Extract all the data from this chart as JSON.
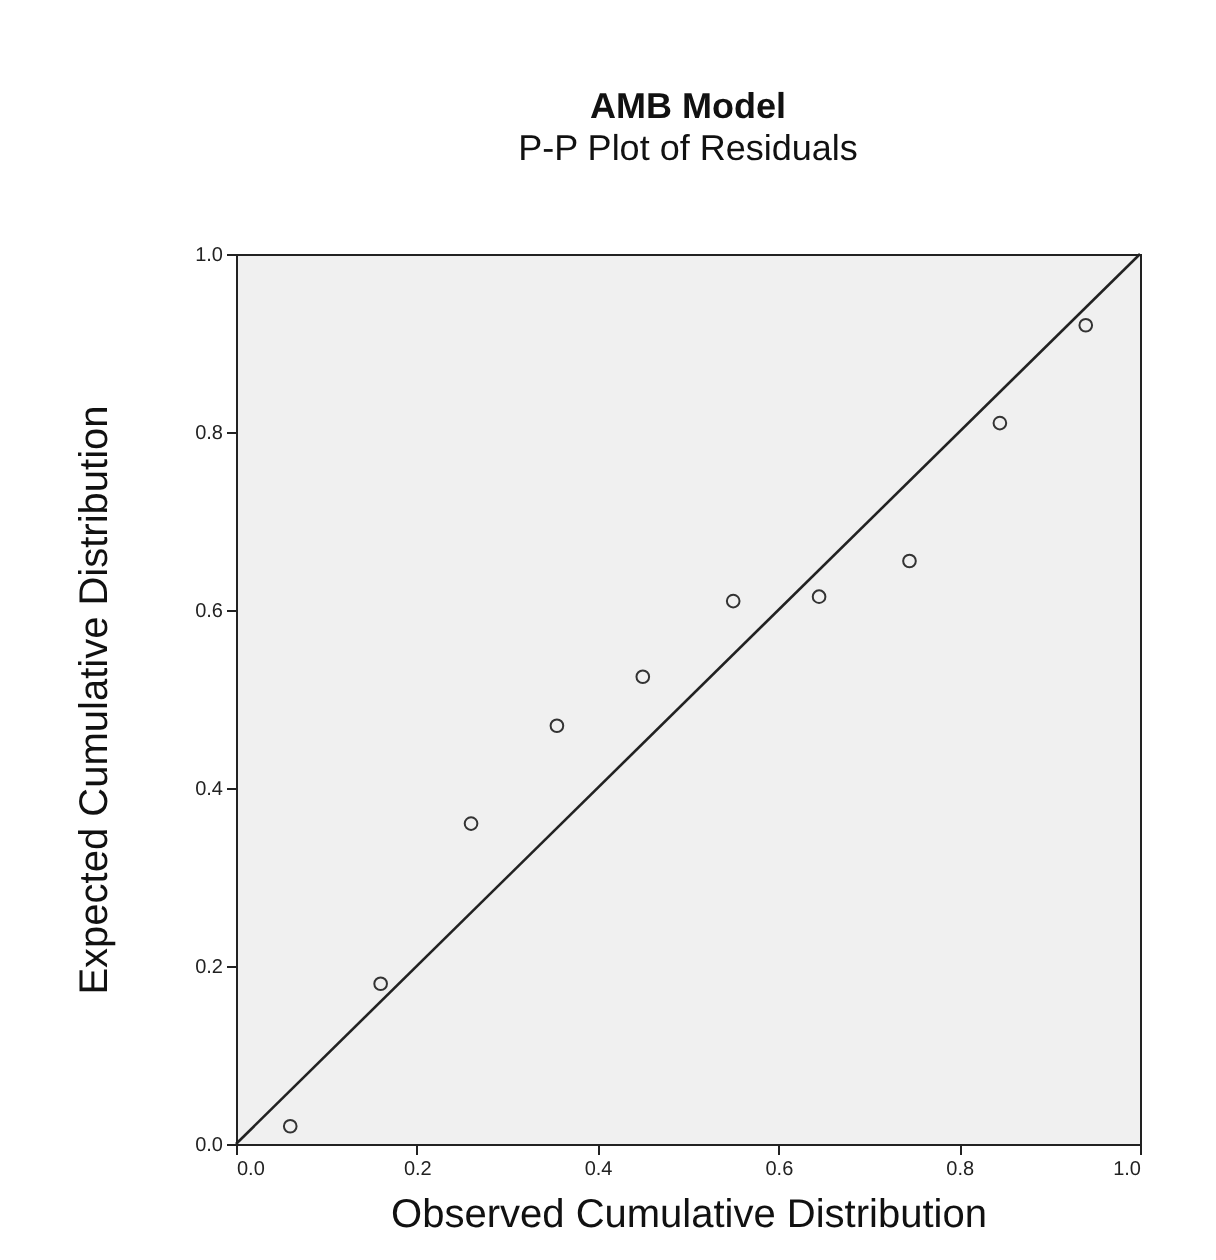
{
  "chart_data": {
    "type": "scatter",
    "title": "AMB Model",
    "subtitle": "P-P Plot of Residuals",
    "xlabel": "Observed Cumulative Distribution",
    "ylabel": "Expected Cumulative Distribution",
    "xlim": [
      0,
      1
    ],
    "ylim": [
      0,
      1
    ],
    "xticks": [
      {
        "value": 0,
        "label": "0.0"
      },
      {
        "value": 0.2,
        "label": "0.2"
      },
      {
        "value": 0.4,
        "label": "0.4"
      },
      {
        "value": 0.6,
        "label": "0.6"
      },
      {
        "value": 0.8,
        "label": "0.8"
      },
      {
        "value": 1,
        "label": "1.0"
      }
    ],
    "yticks": [
      {
        "value": 0,
        "label": "0.0"
      },
      {
        "value": 0.2,
        "label": "0.2"
      },
      {
        "value": 0.4,
        "label": "0.4"
      },
      {
        "value": 0.6,
        "label": "0.6"
      },
      {
        "value": 0.8,
        "label": "0.8"
      },
      {
        "value": 1,
        "label": "1.0"
      }
    ],
    "grid": false,
    "series": [
      {
        "marker": "circle",
        "color": "#333333",
        "x": [
          0.06,
          0.16,
          0.26,
          0.355,
          0.45,
          0.55,
          0.645,
          0.745,
          0.845,
          0.94
        ],
        "values": [
          0.02,
          0.18,
          0.36,
          0.47,
          0.525,
          0.61,
          0.615,
          0.655,
          0.81,
          0.92
        ]
      },
      {
        "type": "line",
        "color": "#222222",
        "x": [
          0,
          1
        ],
        "values": [
          0,
          1
        ]
      }
    ]
  }
}
